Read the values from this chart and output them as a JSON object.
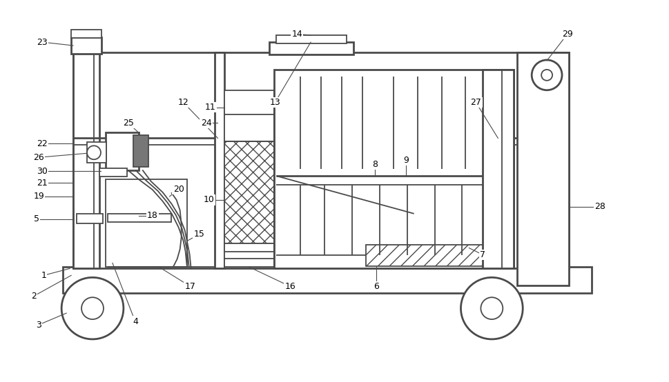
{
  "bg_color": "#ffffff",
  "lc": "#4a4a4a",
  "lw": 1.3,
  "lw2": 2.0,
  "fig_w": 9.69,
  "fig_h": 5.54
}
